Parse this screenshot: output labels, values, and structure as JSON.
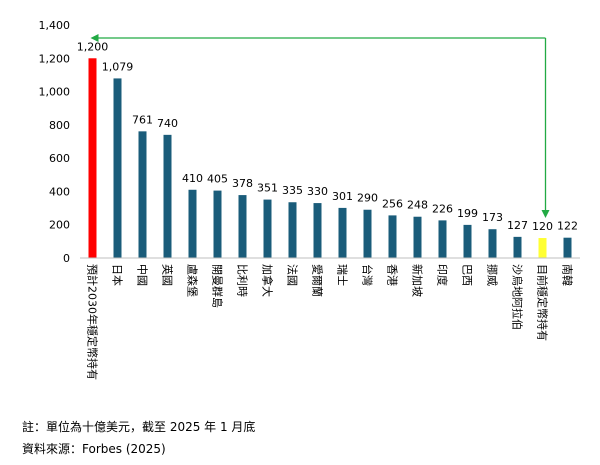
{
  "chart_data": {
    "type": "bar",
    "title": "",
    "xlabel": "",
    "ylabel": "",
    "ylim": [
      0,
      1400
    ],
    "y_ticks": [
      0,
      200,
      400,
      600,
      800,
      1000,
      1200,
      1400
    ],
    "y_tick_labels": [
      "0",
      "200",
      "400",
      "600",
      "800",
      "1,000",
      "1,200",
      "1,400"
    ],
    "categories": [
      "預計2030年穩定幣持有",
      "日本",
      "中國",
      "英國",
      "盧森堡",
      "開曼群島",
      "比利時",
      "加拿大",
      "法國",
      "愛爾蘭",
      "瑞士",
      "台灣",
      "香港",
      "新加坡",
      "印度",
      "巴西",
      "挪威",
      "沙烏地阿拉伯",
      "目前穩定幣持有",
      "南韓"
    ],
    "values": [
      1200,
      1079,
      761,
      740,
      410,
      405,
      378,
      351,
      335,
      330,
      301,
      290,
      256,
      248,
      226,
      199,
      173,
      127,
      120,
      122
    ],
    "value_labels": [
      "1,200",
      "1,079",
      "761",
      "740",
      "410",
      "405",
      "378",
      "351",
      "335",
      "330",
      "301",
      "290",
      "256",
      "248",
      "226",
      "199",
      "173",
      "127",
      "120",
      "122"
    ],
    "colors": {
      "default": "#1a5c7a",
      "projected": "#ff0000",
      "current": "#ffff33",
      "arrow": "#22aa44"
    },
    "highlight": {
      "projected_index": 0,
      "current_index": 18
    },
    "annotation": {
      "type": "arrow",
      "from_index": 0,
      "to_index": 18
    }
  },
  "footnotes": {
    "note": "註：單位為十億美元，截至 2025 年 1 月底",
    "source": "資料來源：Forbes (2025)"
  }
}
